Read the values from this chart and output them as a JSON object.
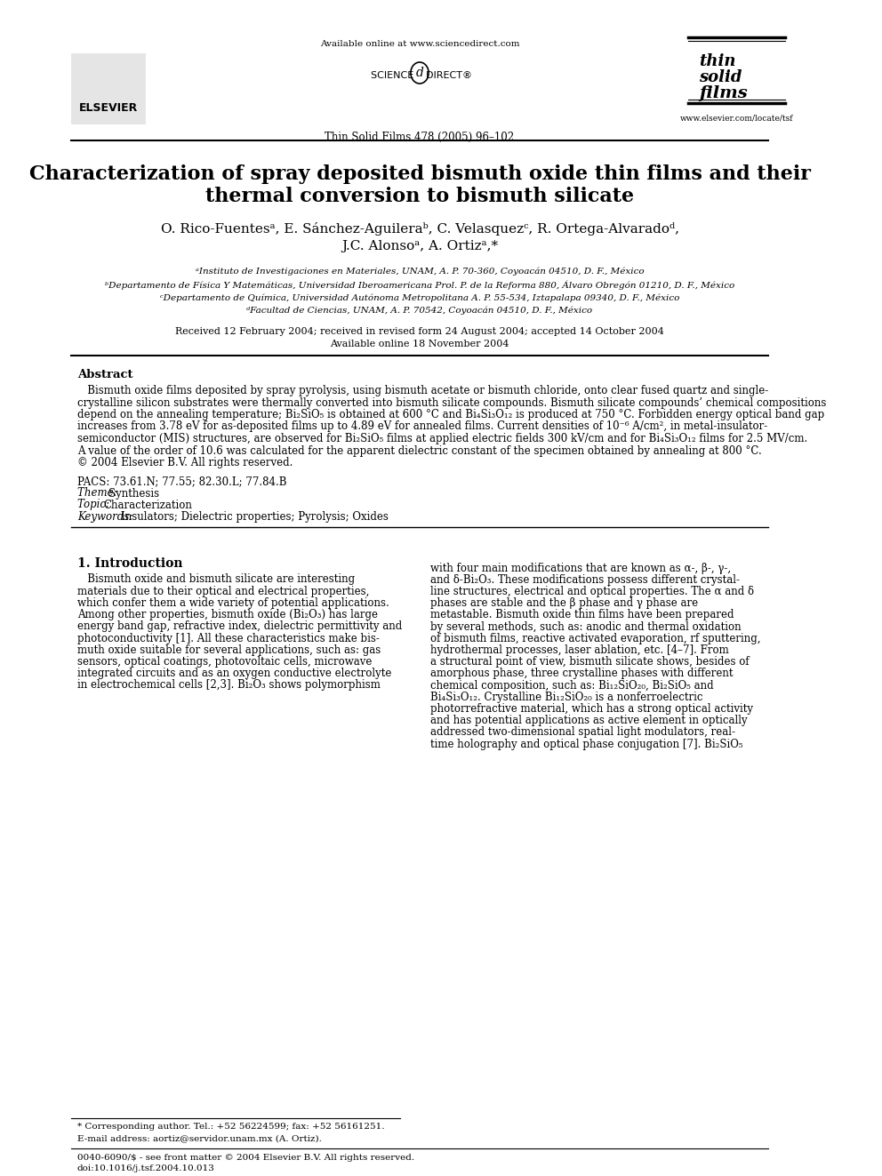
{
  "bg_color": "#ffffff",
  "header_url": "Available online at www.sciencedirect.com",
  "journal_info": "Thin Solid Films 478 (2005) 96–102",
  "website": "www.elsevier.com/locate/tsf",
  "title_line1": "Characterization of spray deposited bismuth oxide thin films and their",
  "title_line2": "thermal conversion to bismuth silicate",
  "authors_line1": "O. Rico-Fuentesᵃ, E. Sánchez-Aguileraᵇ, C. Velasquezᶜ, R. Ortega-Alvaradoᵈ,",
  "authors_line2": "J.C. Alonsoᵃ, A. Ortizᵃ,*",
  "affil_a": "ᵃInstituto de Investigaciones en Materiales, UNAM, A. P. 70-360, Coyoacán 04510, D. F., México",
  "affil_b": "ᵇDepartamento de Física Y Matemáticas, Universidad Iberoamericana Prol. P. de la Reforma 880, Álvaro Obregón 01210, D. F., México",
  "affil_c": "ᶜDepartamento de Química, Universidad Autónoma Metropolitana A. P. 55-534, Iztapalapa 09340, D. F., México",
  "affil_d": "ᵈFacultad de Ciencias, UNAM, A. P. 70542, Coyoacán 04510, D. F., México",
  "received": "Received 12 February 2004; received in revised form 24 August 2004; accepted 14 October 2004",
  "available": "Available online 18 November 2004",
  "abstract_title": "Abstract",
  "abstract_text": "Bismuth oxide films deposited by spray pyrolysis, using bismuth acetate or bismuth chloride, onto clear fused quartz and single-crystalline silicon substrates were thermally converted into bismuth silicate compounds. Bismuth silicate compounds’ chemical compositions depend on the annealing temperature; Bi₂SiO₅ is obtained at 600 °C and Bi₄Si₃O₁₂ is produced at 750 °C. Forbidden energy optical band gap increases from 3.78 eV for as-deposited films up to 4.89 eV for annealed films. Current densities of 10⁻⁶ A/cm², in metal-insulator-semiconductor (MIS) structures, are observed for Bi₂SiO₅ films at applied electric fields 300 kV/cm and for Bi₄Si₃O₁₂ films for 2.5 MV/cm. A value of the order of 10.6 was calculated for the apparent dielectric constant of the specimen obtained by annealing at 800 °C.\n© 2004 Elsevier B.V. All rights reserved.",
  "pacs": "PACS: 73.61.N; 77.55; 82.30.L; 77.84.B",
  "theme": "Theme:  Synthesis",
  "topic": "Topic:  Characterization",
  "keywords": "Keywords:  Insulators; Dielectric properties; Pyrolysis; Oxides",
  "section1_title": "1. Introduction",
  "intro_text_left": "   Bismuth oxide and bismuth silicate are interesting materials due to their optical and electrical properties, which confer them a wide variety of potential applications. Among other properties, bismuth oxide (Bi₂O₃) has large energy band gap, refractive index, dielectric permittivity and photoconductivity [1]. All these characteristics make bismuth oxide suitable for several applications, such as: gas sensors, optical coatings, photovoltaic cells, microwave integrated circuits and as an oxygen conductive electrolyte in electrochemical cells [2,3]. Bi₂O₃ shows polymorphism",
  "intro_text_right": "with four main modifications that are known as α-, β-, γ-, and δ-Bi₂O₃. These modifications possess different crystalline structures, electrical and optical properties. The α and δ phases are stable and the β phase and γ phase are metastable. Bismuth oxide thin films have been prepared by several methods, such as: anodic and thermal oxidation of bismuth films, reactive activated evaporation, rf sputtering, hydrothermal processes, laser ablation, etc. [4–7]. From a structural point of view, bismuth silicate shows, besides of amorphous phase, three crystalline phases with different chemical composition, such as: Bi₁₂SiO₂₀, Bi₂SiO₅ and Bi₄Si₃O₁₂. Crystalline Bi₁₂SiO₂₀ is a nonferroelectric photorrefractive material, which has a strong optical activity and has potential applications as active element in optically addressed two-dimensional spatial light modulators, real-time holography and optical phase conjugation [7]. Bi₂SiO₅",
  "footnote_star": "* Corresponding author. Tel.: +52 56224599; fax: +52 56161251.",
  "footnote_email": "E-mail address: aortiz@servidor.unam.mx (A. Ortiz).",
  "footnote_issn": "0040-6090/$ - see front matter © 2004 Elsevier B.V. All rights reserved.",
  "footnote_doi": "doi:10.1016/j.tsf.2004.10.013"
}
